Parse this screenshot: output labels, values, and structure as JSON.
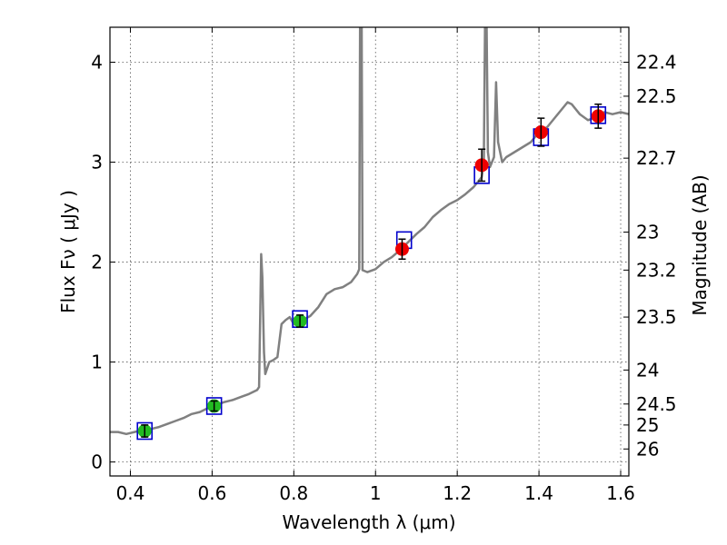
{
  "chart_data": {
    "type": "line",
    "title": "",
    "xlabel": "Wavelength  λ (μm)",
    "ylabel": "Flux  Fν  ( μJy )",
    "ylabel_right": "Magnitude (AB)",
    "xlim": [
      0.35,
      1.62
    ],
    "ylim": [
      -0.14,
      4.35
    ],
    "x_ticks": [
      0.4,
      0.6,
      0.8,
      1.0,
      1.2,
      1.4,
      1.6
    ],
    "x_tick_labels": [
      "0.4",
      "0.6",
      "0.8",
      "1",
      "1.2",
      "1.4",
      "1.6"
    ],
    "y_ticks": [
      0,
      1,
      2,
      3,
      4
    ],
    "y_tick_labels": [
      "0",
      "1",
      "2",
      "3",
      "4"
    ],
    "right_ticks": [
      {
        "label": "22.4",
        "flux": 4.0
      },
      {
        "label": "22.5",
        "flux": 3.66
      },
      {
        "label": "22.7",
        "flux": 3.04
      },
      {
        "label": "23",
        "flux": 2.3
      },
      {
        "label": "23.2",
        "flux": 1.92
      },
      {
        "label": "23.5",
        "flux": 1.45
      },
      {
        "label": "24",
        "flux": 0.92
      },
      {
        "label": "24.5",
        "flux": 0.58
      },
      {
        "label": "25",
        "flux": 0.37
      },
      {
        "label": "26",
        "flux": 0.13
      }
    ],
    "grid": true,
    "colors": {
      "spectrum": "#808080",
      "model_box": "#0000cc",
      "obs_green": "#22bb22",
      "obs_red": "#ee0000",
      "errorbar": "#000000"
    },
    "series": [
      {
        "name": "spectrum",
        "kind": "line",
        "points": [
          [
            0.35,
            0.3
          ],
          [
            0.37,
            0.3
          ],
          [
            0.39,
            0.28
          ],
          [
            0.41,
            0.3
          ],
          [
            0.43,
            0.32
          ],
          [
            0.45,
            0.33
          ],
          [
            0.47,
            0.35
          ],
          [
            0.49,
            0.38
          ],
          [
            0.51,
            0.41
          ],
          [
            0.53,
            0.44
          ],
          [
            0.55,
            0.48
          ],
          [
            0.57,
            0.5
          ],
          [
            0.59,
            0.54
          ],
          [
            0.61,
            0.57
          ],
          [
            0.63,
            0.6
          ],
          [
            0.65,
            0.62
          ],
          [
            0.67,
            0.65
          ],
          [
            0.69,
            0.68
          ],
          [
            0.71,
            0.72
          ],
          [
            0.715,
            0.75
          ],
          [
            0.72,
            2.08
          ],
          [
            0.723,
            1.85
          ],
          [
            0.727,
            1.1
          ],
          [
            0.73,
            0.88
          ],
          [
            0.74,
            1.0
          ],
          [
            0.75,
            1.02
          ],
          [
            0.76,
            1.05
          ],
          [
            0.77,
            1.38
          ],
          [
            0.78,
            1.42
          ],
          [
            0.79,
            1.45
          ],
          [
            0.8,
            1.38
          ],
          [
            0.82,
            1.42
          ],
          [
            0.84,
            1.46
          ],
          [
            0.86,
            1.55
          ],
          [
            0.88,
            1.68
          ],
          [
            0.9,
            1.73
          ],
          [
            0.92,
            1.75
          ],
          [
            0.94,
            1.8
          ],
          [
            0.955,
            1.88
          ],
          [
            0.96,
            1.93
          ],
          [
            0.962,
            4.35
          ],
          [
            0.966,
            4.35
          ],
          [
            0.968,
            1.92
          ],
          [
            0.98,
            1.9
          ],
          [
            1.0,
            1.93
          ],
          [
            1.02,
            2.0
          ],
          [
            1.04,
            2.05
          ],
          [
            1.06,
            2.12
          ],
          [
            1.08,
            2.2
          ],
          [
            1.1,
            2.28
          ],
          [
            1.12,
            2.35
          ],
          [
            1.14,
            2.45
          ],
          [
            1.16,
            2.52
          ],
          [
            1.18,
            2.58
          ],
          [
            1.2,
            2.62
          ],
          [
            1.22,
            2.68
          ],
          [
            1.24,
            2.75
          ],
          [
            1.26,
            2.85
          ],
          [
            1.265,
            3.0
          ],
          [
            1.268,
            4.35
          ],
          [
            1.272,
            4.35
          ],
          [
            1.275,
            3.1
          ],
          [
            1.28,
            2.95
          ],
          [
            1.29,
            3.05
          ],
          [
            1.295,
            3.8
          ],
          [
            1.3,
            3.2
          ],
          [
            1.31,
            3.0
          ],
          [
            1.32,
            3.05
          ],
          [
            1.34,
            3.1
          ],
          [
            1.36,
            3.15
          ],
          [
            1.38,
            3.2
          ],
          [
            1.4,
            3.3
          ],
          [
            1.42,
            3.35
          ],
          [
            1.44,
            3.45
          ],
          [
            1.46,
            3.55
          ],
          [
            1.47,
            3.6
          ],
          [
            1.48,
            3.58
          ],
          [
            1.5,
            3.48
          ],
          [
            1.52,
            3.42
          ],
          [
            1.54,
            3.45
          ],
          [
            1.56,
            3.5
          ],
          [
            1.58,
            3.48
          ],
          [
            1.6,
            3.5
          ],
          [
            1.62,
            3.48
          ]
        ]
      },
      {
        "name": "model boxes",
        "kind": "box",
        "points": [
          [
            0.435,
            0.31
          ],
          [
            0.605,
            0.56
          ],
          [
            0.815,
            1.43
          ],
          [
            1.07,
            2.22
          ],
          [
            1.26,
            2.87
          ],
          [
            1.405,
            3.25
          ],
          [
            1.545,
            3.47
          ]
        ]
      },
      {
        "name": "observed (green)",
        "kind": "marker",
        "points": [
          {
            "x": 0.435,
            "y": 0.31,
            "err": 0.06
          },
          {
            "x": 0.605,
            "y": 0.56,
            "err": 0.05
          },
          {
            "x": 0.815,
            "y": 1.41,
            "err": 0.06
          }
        ]
      },
      {
        "name": "observed (red)",
        "kind": "marker",
        "points": [
          {
            "x": 1.065,
            "y": 2.13,
            "err": 0.1
          },
          {
            "x": 1.26,
            "y": 2.97,
            "err": 0.16
          },
          {
            "x": 1.405,
            "y": 3.3,
            "err": 0.14
          },
          {
            "x": 1.545,
            "y": 3.46,
            "err": 0.12
          }
        ]
      }
    ]
  }
}
